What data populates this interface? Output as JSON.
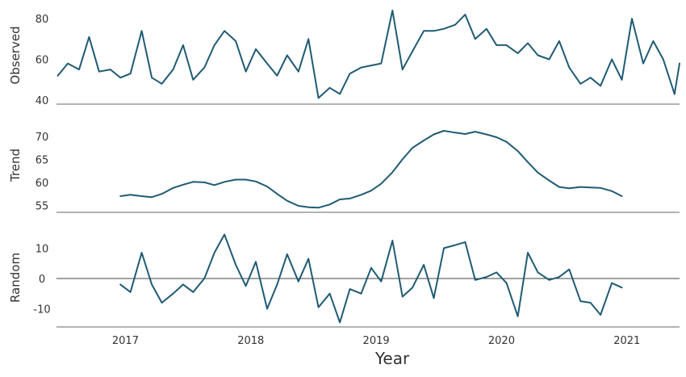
{
  "chart_data": {
    "type": "line",
    "xlabel": "Year",
    "x_ticks": [
      "2017",
      "2018",
      "2019",
      "2020",
      "2021"
    ],
    "x_tick_values": [
      2017,
      2018,
      2019,
      2020,
      2021
    ],
    "xlim": [
      2016.45,
      2021.42
    ],
    "line_color": "#1f5b73",
    "axis_color": "#9a9a9a",
    "panels": [
      {
        "ylabel": "Observed",
        "ylim": [
          38,
          86
        ],
        "yticks": [
          40,
          60,
          80
        ],
        "zero_line": false,
        "series": [
          {
            "x": [
              2016.46,
              2016.54,
              2016.63,
              2016.71,
              2016.79,
              2016.88,
              2016.96,
              2017.04,
              2017.13,
              2017.21,
              2017.29,
              2017.38,
              2017.46,
              2017.54,
              2017.63,
              2017.71,
              2017.79,
              2017.88,
              2017.96,
              2018.04,
              2018.13,
              2018.21,
              2018.29,
              2018.38,
              2018.46,
              2018.54,
              2018.63,
              2018.71,
              2018.79,
              2018.88,
              2018.96,
              2019.04,
              2019.13,
              2019.21,
              2019.29,
              2019.38,
              2019.46,
              2019.54,
              2019.63,
              2019.71,
              2019.79,
              2019.88,
              2019.96,
              2020.04,
              2020.13,
              2020.21,
              2020.29,
              2020.38,
              2020.46,
              2020.54,
              2020.63,
              2020.71,
              2020.79,
              2020.88,
              2020.96,
              2021.04,
              2021.13,
              2021.21,
              2021.29,
              2021.38
            ],
            "y": [
              52,
              58,
              55,
              71,
              54,
              55,
              51,
              53,
              74,
              51,
              48,
              55,
              67,
              50,
              56,
              67,
              74,
              69,
              54,
              65,
              58,
              52,
              62,
              54,
              70,
              41,
              46,
              43,
              53,
              56,
              57,
              58,
              84,
              55,
              64,
              74,
              74,
              75,
              77,
              82,
              70,
              75,
              67,
              67,
              63,
              68,
              62,
              60,
              69,
              56,
              48,
              51,
              47,
              60,
              50,
              80,
              58,
              69,
              60,
              43
            ]
          },
          {
            "x": [
              2021.38,
              2021.42
            ],
            "y": [
              43,
              58
            ]
          }
        ]
      },
      {
        "ylabel": "Trend",
        "ylim": [
          53.5,
          74
        ],
        "yticks": [
          55,
          60,
          65,
          70
        ],
        "zero_line": false,
        "series": [
          {
            "x": [
              2016.96,
              2017.04,
              2017.13,
              2017.21,
              2017.29,
              2017.38,
              2017.46,
              2017.54,
              2017.63,
              2017.71,
              2017.79,
              2017.88,
              2017.96,
              2018.04,
              2018.13,
              2018.21,
              2018.29,
              2018.38,
              2018.46,
              2018.54,
              2018.63,
              2018.71,
              2018.79,
              2018.88,
              2018.96,
              2019.04,
              2019.13,
              2019.21,
              2019.29,
              2019.38,
              2019.46,
              2019.54,
              2019.63,
              2019.71,
              2019.79,
              2019.88,
              2019.96,
              2020.04,
              2020.13,
              2020.21,
              2020.29,
              2020.38,
              2020.46,
              2020.54,
              2020.63,
              2020.71,
              2020.79,
              2020.88,
              2020.96
            ],
            "y": [
              57,
              57.3,
              57,
              56.8,
              57.5,
              58.8,
              59.5,
              60.1,
              60,
              59.4,
              60.1,
              60.6,
              60.6,
              60.2,
              59.1,
              57.5,
              56,
              54.9,
              54.6,
              54.5,
              55.2,
              56.3,
              56.5,
              57.3,
              58.2,
              59.7,
              62.2,
              65,
              67.5,
              69.1,
              70.4,
              71.2,
              70.8,
              70.5,
              71,
              70.4,
              69.8,
              68.8,
              66.8,
              64.4,
              62.1,
              60.4,
              59,
              58.7,
              59,
              58.9,
              58.8,
              58.1,
              57
            ]
          }
        ]
      },
      {
        "ylabel": "Random",
        "ylim": [
          -16,
          16.5
        ],
        "yticks": [
          -10,
          0,
          10
        ],
        "zero_line": true,
        "series": [
          {
            "x": [
              2016.96,
              2017.04,
              2017.13,
              2017.21,
              2017.29,
              2017.38,
              2017.46,
              2017.54,
              2017.63,
              2017.71,
              2017.79,
              2017.88,
              2017.96,
              2018.04,
              2018.13,
              2018.21,
              2018.29,
              2018.38,
              2018.46,
              2018.54,
              2018.63,
              2018.71,
              2018.79,
              2018.88,
              2018.96,
              2019.04,
              2019.13,
              2019.21,
              2019.29,
              2019.38,
              2019.46,
              2019.54,
              2019.63,
              2019.71,
              2019.79,
              2019.88,
              2019.96,
              2020.04,
              2020.13,
              2020.21,
              2020.29,
              2020.38,
              2020.46,
              2020.54,
              2020.63,
              2020.71,
              2020.79,
              2020.88,
              2020.96
            ],
            "y": [
              -2,
              -4.5,
              8.5,
              -2,
              -8,
              -5,
              -2,
              -4.5,
              0,
              8.5,
              14.5,
              4.5,
              -2.5,
              5.5,
              -10,
              -2,
              8,
              -1,
              6.5,
              -9.5,
              -5,
              -14.5,
              -3.5,
              -5,
              3.5,
              -1,
              12.5,
              -6,
              -3,
              4.5,
              -6.5,
              10,
              11,
              12,
              -0.5,
              0.5,
              2,
              -1.5,
              -12.5,
              8.5,
              2,
              -0.5,
              0.5,
              3,
              -7.5,
              -8,
              -12,
              -1.5,
              -3
            ]
          }
        ]
      }
    ]
  }
}
